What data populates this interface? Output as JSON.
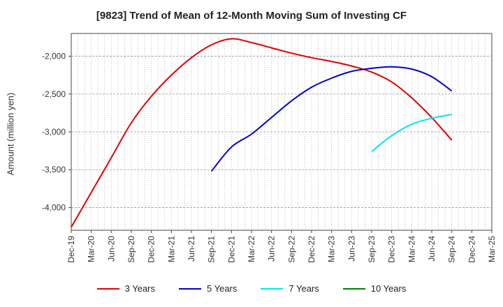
{
  "chart_data": {
    "type": "line",
    "title": "[9823]  Trend of Mean of 12-Month Moving Sum of Investing CF",
    "xlabel": "",
    "ylabel": "Amount (million yen)",
    "ylim": [
      -4300,
      -1700
    ],
    "yticks": [
      -4000,
      -3500,
      -3000,
      -2500,
      -2000
    ],
    "ytick_labels": [
      "-4,000",
      "-3,500",
      "-3,000",
      "-2,500",
      "-2,000"
    ],
    "xlim": [
      "Dec-19",
      "Mar-25"
    ],
    "xtick_labels": [
      "Dec-19",
      "Mar-20",
      "Jun-20",
      "Sep-20",
      "Dec-20",
      "Mar-21",
      "Jun-21",
      "Sep-21",
      "Dec-21",
      "Mar-22",
      "Jun-22",
      "Sep-22",
      "Dec-22",
      "Mar-23",
      "Jun-23",
      "Sep-23",
      "Dec-23",
      "Mar-24",
      "Jun-24",
      "Sep-24",
      "Dec-24",
      "Mar-25"
    ],
    "grid": true,
    "legend_position": "bottom",
    "series": [
      {
        "name": "3 Years",
        "color": "#e00000",
        "x": [
          "Dec-19",
          "Mar-20",
          "Jun-20",
          "Sep-20",
          "Dec-20",
          "Mar-21",
          "Jun-21",
          "Sep-21",
          "Dec-21",
          "Mar-22",
          "Jun-22",
          "Sep-22",
          "Dec-22",
          "Mar-23",
          "Jun-23",
          "Sep-23",
          "Dec-23",
          "Mar-24",
          "Jun-24",
          "Sep-24"
        ],
        "values": [
          -4260,
          -3800,
          -3340,
          -2880,
          -2530,
          -2250,
          -2020,
          -1850,
          -1770,
          -1820,
          -1890,
          -1960,
          -2020,
          -2070,
          -2130,
          -2210,
          -2340,
          -2550,
          -2810,
          -3110
        ]
      },
      {
        "name": "5 Years",
        "color": "#0000cc",
        "x": [
          "Sep-21",
          "Dec-21",
          "Mar-22",
          "Jun-22",
          "Sep-22",
          "Dec-22",
          "Mar-23",
          "Jun-23",
          "Sep-23",
          "Dec-23",
          "Mar-24",
          "Jun-24",
          "Sep-24"
        ],
        "values": [
          -3520,
          -3200,
          -3030,
          -2810,
          -2590,
          -2410,
          -2290,
          -2200,
          -2160,
          -2140,
          -2170,
          -2270,
          -2460
        ]
      },
      {
        "name": "7 Years",
        "color": "#00e5ee",
        "x": [
          "Sep-23",
          "Dec-23",
          "Mar-24",
          "Jun-24",
          "Sep-24"
        ],
        "values": [
          -3260,
          -3050,
          -2900,
          -2820,
          -2770
        ]
      },
      {
        "name": "10 Years",
        "color": "#008000",
        "x": [],
        "values": []
      }
    ]
  }
}
